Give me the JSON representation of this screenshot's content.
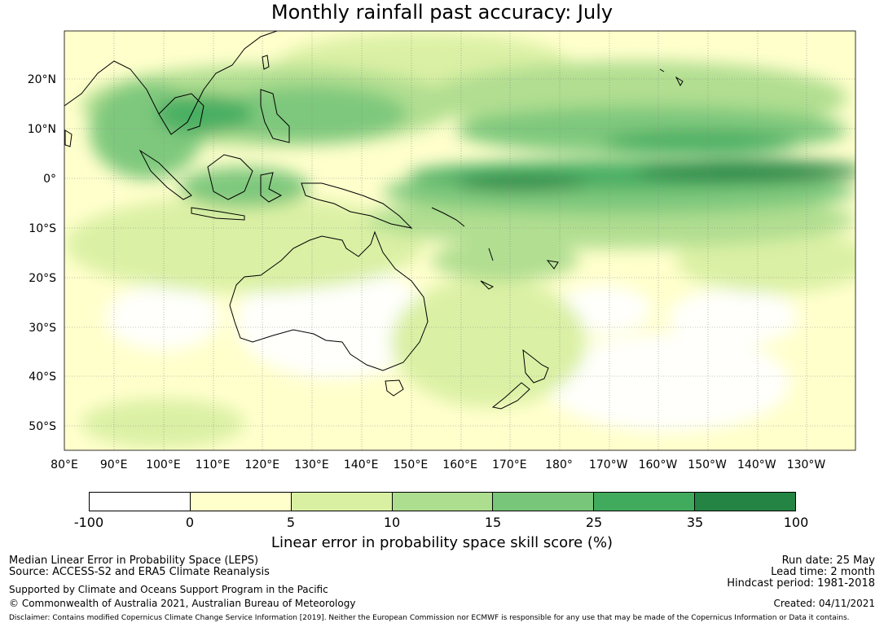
{
  "title": "Monthly rainfall past accuracy: July",
  "map": {
    "lat_labels": [
      "20°N",
      "10°N",
      "0°",
      "10°S",
      "20°S",
      "30°S",
      "40°S",
      "50°S"
    ],
    "lon_labels": [
      "80°E",
      "90°E",
      "100°E",
      "110°E",
      "120°E",
      "130°E",
      "140°E",
      "150°E",
      "160°E",
      "170°E",
      "180°",
      "170°W",
      "160°W",
      "150°W",
      "140°W",
      "130°W"
    ],
    "extent": {
      "lon_min": 80,
      "lon_max": 240,
      "lat_min": -55,
      "lat_max": 30
    }
  },
  "legend": {
    "tick_labels": [
      "-100",
      "0",
      "5",
      "10",
      "15",
      "25",
      "35",
      "100"
    ],
    "colors": [
      "#ffffff",
      "#ffffcc",
      "#d9f0a3",
      "#addd8e",
      "#78c679",
      "#41ab5d",
      "#238443"
    ],
    "label": "Linear error in probability space skill score (%)"
  },
  "footer": {
    "left_line1": "Median Linear Error in Probability Space (LEPS)",
    "left_line2": "Source: ACCESS-S2 and ERA5 Climate Reanalysis",
    "left_line3": "Supported by Climate and Oceans Support Program in the Pacific",
    "left_line4": "© Commonwealth of Australia 2021, Australian Bureau of Meteorology",
    "right_line1": "Run date: 25 May",
    "right_line2": "Lead time: 2 month",
    "right_line3": "Hindcast period: 1981-2018",
    "right_line4": "Created: 04/11/2021",
    "disclaimer": "Disclaimer: Contains modified Copernicus Climate Change Service Information [2019]. Neither the European Commission nor ECMWF is responsible for any use that may be made of the Copernicus Information or Data it contains."
  }
}
